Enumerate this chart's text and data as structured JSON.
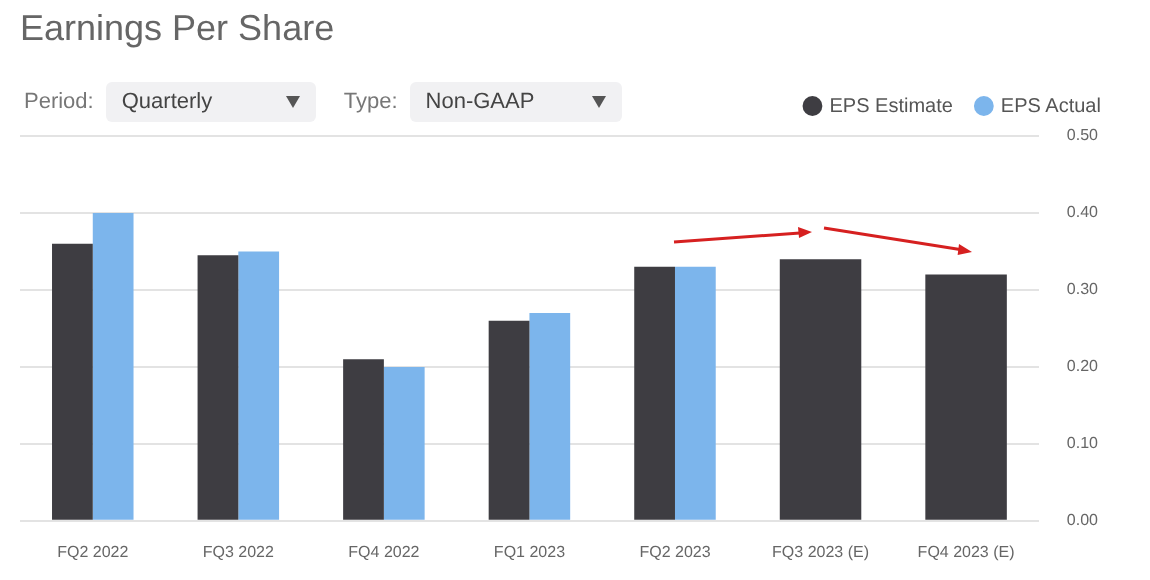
{
  "chart_data": {
    "type": "bar",
    "title": "Earnings Per Share",
    "annotations": [
      "Period:",
      "Quarterly",
      "Type:",
      "Non-GAAP"
    ],
    "categories": [
      "FQ2 2022",
      "FQ3 2022",
      "FQ4 2022",
      "FQ1 2023",
      "FQ2 2023",
      "FQ3 2023 (E)",
      "FQ4 2023 (E)"
    ],
    "series": [
      {
        "name": "EPS Estimate",
        "color": "#3e3d42",
        "values": [
          0.36,
          0.345,
          0.21,
          0.26,
          0.33,
          0.34,
          0.32
        ]
      },
      {
        "name": "EPS Actual",
        "color": "#7cb5ec",
        "values": [
          0.4,
          0.35,
          0.2,
          0.27,
          0.33,
          null,
          null
        ]
      }
    ],
    "ylim": [
      0,
      0.5
    ],
    "yticks": [
      {
        "value": 0,
        "label": "0.00"
      },
      {
        "value": 0.1,
        "label": "0.10"
      },
      {
        "value": 0.2,
        "label": "0.20"
      },
      {
        "value": 0.3,
        "label": "0.30"
      },
      {
        "value": 0.4,
        "label": "0.40"
      },
      {
        "value": 0.5,
        "label": "0.50"
      }
    ],
    "grid": "y",
    "legend": "top right",
    "marker": "circle"
  }
}
